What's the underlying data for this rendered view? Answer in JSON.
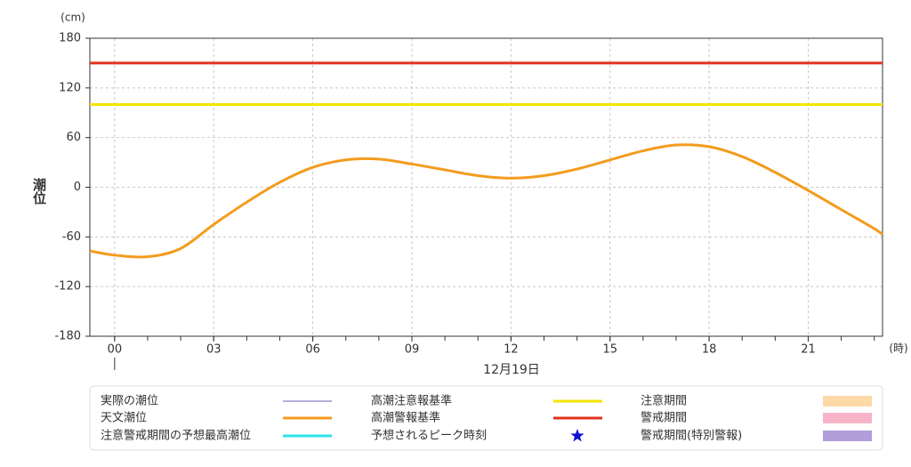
{
  "chart_data": {
    "type": "line",
    "y_unit": "(cm)",
    "x_unit": "(時)",
    "y_label": "潮位",
    "date_label": "12月19日",
    "xlim": [
      -0.75,
      23.25
    ],
    "ylim": [
      -180,
      180
    ],
    "yticks": [
      180,
      120,
      60,
      0,
      -60,
      -120,
      -180
    ],
    "xticks": [
      {
        "value": 0,
        "label": "00"
      },
      {
        "value": 3,
        "label": "03"
      },
      {
        "value": 6,
        "label": "06"
      },
      {
        "value": 9,
        "label": "09"
      },
      {
        "value": 12,
        "label": "12"
      },
      {
        "value": 15,
        "label": "15"
      },
      {
        "value": 18,
        "label": "18"
      },
      {
        "value": 21,
        "label": "21"
      }
    ],
    "grid": true,
    "x": [
      -0.75,
      0,
      1,
      2,
      3,
      4,
      5,
      6,
      7,
      8,
      9,
      10,
      11,
      12,
      13,
      14,
      15,
      16,
      17,
      18,
      19,
      20,
      21,
      22,
      23,
      23.25
    ],
    "series": [
      {
        "name": "天文潮位",
        "color": "#f39c1e",
        "values": [
          -77,
          -82,
          -84,
          -74,
          -45,
          -18,
          6,
          24,
          33,
          34,
          28,
          21,
          14,
          11,
          14,
          22,
          33,
          44,
          51,
          49,
          37,
          18,
          -4,
          -27,
          -50,
          -57
        ]
      }
    ],
    "hlines": [
      {
        "name": "高潮注意報基準",
        "color": "#f2e600",
        "value": 100
      },
      {
        "name": "高潮警報基準",
        "color": "#e0321e",
        "value": 150
      }
    ],
    "legend_other": [
      {
        "name": "実際の潮位",
        "color": "#8e7cc3",
        "style": "thin"
      },
      {
        "name": "注意警戒期間の予想最高潮位",
        "color": "#29e3e8",
        "style": "line"
      },
      {
        "name": "予想されるピーク時刻",
        "color": "#1010d0",
        "style": "star"
      },
      {
        "name": "注意期間",
        "color": "#fdd9a8",
        "style": "box"
      },
      {
        "name": "警戒期間",
        "color": "#f7b4c8",
        "style": "box"
      },
      {
        "name": "警戒期間(特別警報)",
        "color": "#b39ddb",
        "style": "box"
      }
    ]
  }
}
